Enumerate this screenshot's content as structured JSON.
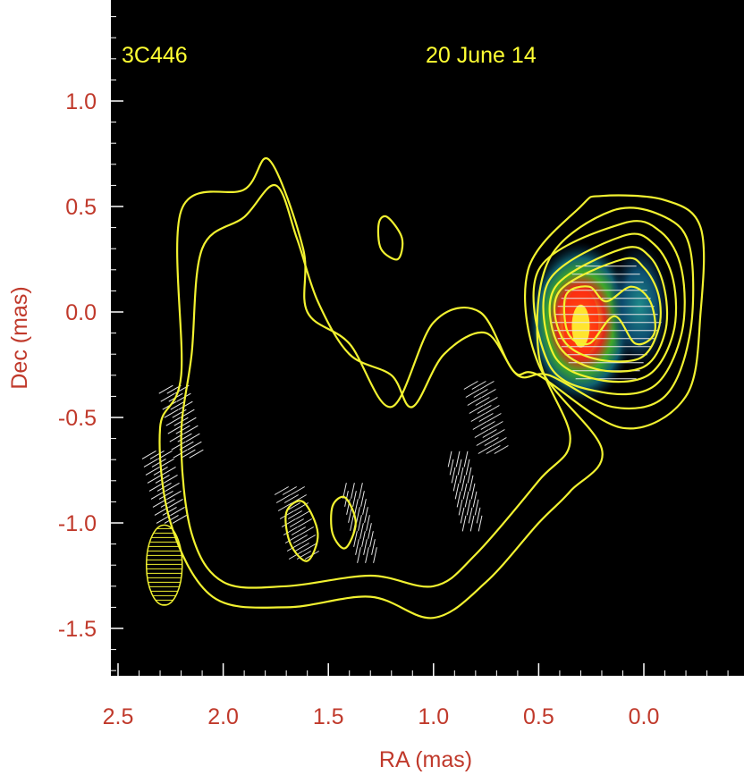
{
  "chart_data": {
    "type": "contour",
    "source_label": "3C446",
    "epoch_label": "20 June 14",
    "xlabel": "RA (mas)",
    "ylabel": "Dec (mas)",
    "xlim": [
      2.5,
      -0.45
    ],
    "ylim": [
      -1.72,
      1.45
    ],
    "x_ticks": [
      "2.5",
      "2.0",
      "1.5",
      "1.0",
      "0.5",
      "0.0"
    ],
    "x_tick_values": [
      2.5,
      2.0,
      1.5,
      1.0,
      0.5,
      0.0
    ],
    "y_ticks": [
      "1.0",
      "0.5",
      "0.0",
      "-0.5",
      "-1.0",
      "-1.5"
    ],
    "y_tick_values": [
      1.0,
      0.5,
      0.0,
      -0.5,
      -1.0,
      -1.5
    ],
    "contour_color": "#f2f230",
    "background_color": "#000000",
    "beam": {
      "ra": 2.28,
      "dec": -1.2,
      "major_mas": 0.38,
      "minor_mas": 0.17,
      "pa_deg": 0
    },
    "core": {
      "ra": 0.3,
      "dec": -0.05
    },
    "components": [
      {
        "name": "core",
        "ra": 0.3,
        "dec": -0.05
      },
      {
        "name": "knot",
        "ra": 0.02,
        "dec": 0.03
      }
    ],
    "contours": [
      [
        [
          0.2,
          0.55
        ],
        [
          -0.1,
          0.53
        ],
        [
          -0.27,
          0.4
        ],
        [
          -0.27,
          0.0
        ],
        [
          -0.2,
          -0.4
        ],
        [
          0.1,
          -0.55
        ],
        [
          0.5,
          -0.3
        ],
        [
          0.62,
          -0.28
        ],
        [
          0.78,
          0.0
        ],
        [
          1.0,
          -0.05
        ],
        [
          1.2,
          -0.45
        ],
        [
          1.4,
          -0.15
        ],
        [
          1.6,
          0.0
        ],
        [
          1.62,
          0.3
        ],
        [
          1.78,
          0.72
        ],
        [
          1.9,
          0.58
        ],
        [
          2.2,
          0.48
        ],
        [
          2.2,
          -0.3
        ],
        [
          2.3,
          -0.55
        ],
        [
          2.25,
          -1.0
        ],
        [
          2.05,
          -1.35
        ],
        [
          1.7,
          -1.4
        ],
        [
          1.3,
          -1.35
        ],
        [
          1.0,
          -1.45
        ],
        [
          0.75,
          -1.28
        ],
        [
          0.5,
          -1.0
        ],
        [
          0.35,
          -0.85
        ],
        [
          0.2,
          -0.65
        ],
        [
          0.5,
          -0.25
        ],
        [
          0.55,
          0.2
        ],
        [
          0.3,
          0.5
        ]
      ],
      [
        [
          0.15,
          0.48
        ],
        [
          -0.1,
          0.45
        ],
        [
          -0.22,
          0.3
        ],
        [
          -0.22,
          -0.1
        ],
        [
          -0.1,
          -0.4
        ],
        [
          0.15,
          -0.45
        ],
        [
          0.45,
          -0.3
        ],
        [
          0.6,
          -0.3
        ],
        [
          0.75,
          -0.1
        ],
        [
          0.95,
          -0.2
        ],
        [
          1.1,
          -0.45
        ],
        [
          1.2,
          -0.3
        ],
        [
          1.4,
          -0.2
        ],
        [
          1.55,
          0.05
        ],
        [
          1.65,
          0.35
        ],
        [
          1.75,
          0.6
        ],
        [
          1.9,
          0.45
        ],
        [
          2.1,
          0.3
        ],
        [
          2.15,
          -0.2
        ],
        [
          2.2,
          -0.6
        ],
        [
          2.15,
          -1.05
        ],
        [
          2.0,
          -1.28
        ],
        [
          1.7,
          -1.3
        ],
        [
          1.3,
          -1.25
        ],
        [
          1.0,
          -1.3
        ],
        [
          0.8,
          -1.15
        ],
        [
          0.5,
          -0.8
        ],
        [
          0.35,
          -0.6
        ],
        [
          0.5,
          -0.2
        ],
        [
          0.45,
          0.25
        ]
      ],
      [
        [
          0.1,
          0.42
        ],
        [
          -0.08,
          0.38
        ],
        [
          -0.18,
          0.2
        ],
        [
          -0.18,
          -0.1
        ],
        [
          -0.05,
          -0.35
        ],
        [
          0.2,
          -0.38
        ],
        [
          0.45,
          -0.25
        ],
        [
          0.5,
          0.2
        ]
      ],
      [
        [
          0.1,
          0.36
        ],
        [
          -0.05,
          0.32
        ],
        [
          -0.14,
          0.15
        ],
        [
          -0.14,
          -0.1
        ],
        [
          -0.02,
          -0.3
        ],
        [
          0.22,
          -0.32
        ],
        [
          0.43,
          -0.2
        ],
        [
          0.45,
          0.15
        ]
      ],
      [
        [
          0.1,
          0.3
        ],
        [
          -0.03,
          0.26
        ],
        [
          -0.1,
          0.1
        ],
        [
          -0.1,
          -0.1
        ],
        [
          0.0,
          -0.26
        ],
        [
          0.23,
          -0.27
        ],
        [
          0.41,
          -0.15
        ],
        [
          0.42,
          0.12
        ]
      ],
      [
        [
          0.1,
          0.25
        ],
        [
          0.0,
          0.21
        ],
        [
          -0.07,
          0.08
        ],
        [
          -0.07,
          -0.08
        ],
        [
          0.02,
          -0.22
        ],
        [
          0.24,
          -0.22
        ],
        [
          0.39,
          -0.12
        ],
        [
          0.4,
          0.1
        ]
      ],
      [
        [
          0.06,
          0.12
        ],
        [
          -0.03,
          0.05
        ],
        [
          -0.05,
          -0.1
        ],
        [
          0.04,
          -0.15
        ],
        [
          0.14,
          -0.02
        ],
        [
          0.26,
          -0.15
        ],
        [
          0.36,
          -0.1
        ],
        [
          0.37,
          0.08
        ],
        [
          0.26,
          0.12
        ],
        [
          0.18,
          0.05
        ]
      ],
      [
        [
          1.22,
          0.45
        ],
        [
          1.15,
          0.35
        ],
        [
          1.17,
          0.25
        ],
        [
          1.25,
          0.3
        ],
        [
          1.26,
          0.42
        ]
      ],
      [
        [
          1.62,
          -0.9
        ],
        [
          1.55,
          -1.05
        ],
        [
          1.6,
          -1.18
        ],
        [
          1.68,
          -1.1
        ],
        [
          1.7,
          -0.95
        ]
      ],
      [
        [
          1.42,
          -0.88
        ],
        [
          1.37,
          -1.0
        ],
        [
          1.42,
          -1.12
        ],
        [
          1.48,
          -1.05
        ],
        [
          1.48,
          -0.92
        ]
      ]
    ],
    "contour_levels": 10,
    "colormap": "rainbow",
    "evpa_regions": [
      {
        "ra_center": 0.18,
        "dec_center": -0.05,
        "orientation": "horizontal"
      },
      {
        "ra_center": 2.2,
        "dec_center": -0.52,
        "orientation": "oblique"
      },
      {
        "ra_center": 2.28,
        "dec_center": -0.83,
        "orientation": "oblique"
      },
      {
        "ra_center": 1.65,
        "dec_center": -1.0,
        "orientation": "oblique"
      },
      {
        "ra_center": 1.35,
        "dec_center": -1.0,
        "orientation": "near-vertical"
      },
      {
        "ra_center": 0.85,
        "dec_center": -0.85,
        "orientation": "near-vertical"
      },
      {
        "ra_center": 0.75,
        "dec_center": -0.5,
        "orientation": "oblique"
      }
    ]
  }
}
